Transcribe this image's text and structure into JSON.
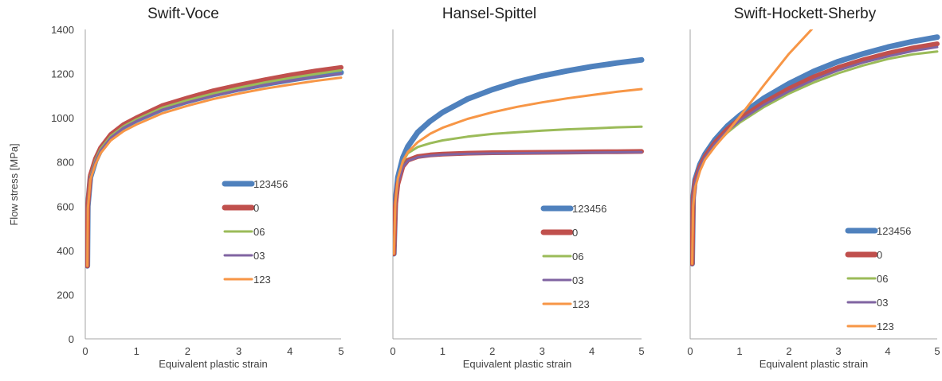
{
  "chart_data": {
    "type": "line",
    "ylabel": "Flow stress [MPa]",
    "xlabel": "Equivalent plastic strain",
    "shared_y": {
      "ylim": [
        0,
        1400
      ],
      "ticks": [
        0,
        200,
        400,
        600,
        800,
        1000,
        1200,
        1400
      ],
      "labels": [
        "0",
        "200",
        "400",
        "600",
        "800",
        "1000",
        "1200",
        "1400"
      ]
    },
    "colors": {
      "123456": "#4f81bd",
      "0": "#c0504d",
      "06": "#9bbb59",
      "03": "#8064a2",
      "123": "#f79646"
    },
    "panels": [
      {
        "title": "Swift-Voce",
        "xlim": [
          0,
          5
        ],
        "xticks": [
          "0",
          "1",
          "2",
          "3",
          "4",
          "5"
        ],
        "legend_position": "center-right",
        "series": [
          {
            "name": "123456",
            "x": [
              0.04,
              0.05,
              0.1,
              0.2,
              0.3,
              0.5,
              0.75,
              1,
              1.5,
              2,
              2.5,
              3,
              3.5,
              4,
              4.5,
              5
            ],
            "y": [
              330,
              600,
              730,
              805,
              855,
              915,
              960,
              990,
              1040,
              1075,
              1105,
              1130,
              1152,
              1172,
              1190,
              1205
            ]
          },
          {
            "name": "0",
            "x": [
              0.04,
              0.05,
              0.1,
              0.2,
              0.3,
              0.5,
              0.75,
              1,
              1.5,
              2,
              2.5,
              3,
              3.5,
              4,
              4.5,
              5
            ],
            "y": [
              330,
              610,
              740,
              815,
              865,
              925,
              970,
              1000,
              1055,
              1090,
              1122,
              1148,
              1172,
              1193,
              1212,
              1228
            ]
          },
          {
            "name": "06",
            "x": [
              0.04,
              0.05,
              0.1,
              0.2,
              0.3,
              0.5,
              0.75,
              1,
              1.5,
              2,
              2.5,
              3,
              3.5,
              4,
              4.5,
              5
            ],
            "y": [
              330,
              600,
              735,
              810,
              860,
              918,
              962,
              993,
              1045,
              1080,
              1110,
              1136,
              1160,
              1180,
              1198,
              1215
            ]
          },
          {
            "name": "03",
            "x": [
              0.04,
              0.05,
              0.1,
              0.2,
              0.3,
              0.5,
              0.75,
              1,
              1.5,
              2,
              2.5,
              3,
              3.5,
              4,
              4.5,
              5
            ],
            "y": [
              330,
              600,
              730,
              803,
              852,
              910,
              955,
              985,
              1036,
              1070,
              1100,
              1125,
              1148,
              1168,
              1185,
              1200
            ]
          },
          {
            "name": "123",
            "x": [
              0.04,
              0.05,
              0.1,
              0.2,
              0.3,
              0.5,
              0.75,
              1,
              1.5,
              2,
              2.5,
              3,
              3.5,
              4,
              4.5,
              5
            ],
            "y": [
              330,
              590,
              720,
              790,
              840,
              898,
              940,
              970,
              1020,
              1055,
              1085,
              1110,
              1132,
              1150,
              1167,
              1182
            ]
          }
        ]
      },
      {
        "title": "Hansel-Spittel",
        "xlim": [
          0,
          5
        ],
        "xticks": [
          "0",
          "1",
          "2",
          "3",
          "4",
          "5"
        ],
        "legend_position": "bottom-right",
        "series": [
          {
            "name": "123456",
            "x": [
              0.02,
              0.05,
              0.1,
              0.2,
              0.3,
              0.5,
              0.75,
              1,
              1.5,
              2,
              2.5,
              3,
              3.5,
              4,
              4.5,
              5
            ],
            "y": [
              385,
              620,
              730,
              820,
              870,
              935,
              985,
              1025,
              1085,
              1128,
              1163,
              1190,
              1212,
              1232,
              1248,
              1262
            ]
          },
          {
            "name": "0",
            "x": [
              0.02,
              0.05,
              0.1,
              0.2,
              0.3,
              0.5,
              0.75,
              1,
              1.5,
              2,
              2.5,
              3,
              3.5,
              4,
              4.5,
              5
            ],
            "y": [
              385,
              600,
              700,
              780,
              808,
              825,
              832,
              836,
              840,
              842,
              843,
              844,
              845,
              846,
              847,
              848
            ]
          },
          {
            "name": "06",
            "x": [
              0.02,
              0.05,
              0.1,
              0.2,
              0.3,
              0.5,
              0.75,
              1,
              1.5,
              2,
              2.5,
              3,
              3.5,
              4,
              4.5,
              5
            ],
            "y": [
              385,
              610,
              720,
              800,
              840,
              868,
              885,
              898,
              915,
              927,
              935,
              942,
              948,
              952,
              957,
              960
            ]
          },
          {
            "name": "03",
            "x": [
              0.02,
              0.05,
              0.1,
              0.2,
              0.3,
              0.5,
              0.75,
              1,
              1.5,
              2,
              2.5,
              3,
              3.5,
              4,
              4.5,
              5
            ],
            "y": [
              385,
              600,
              700,
              778,
              805,
              822,
              829,
              833,
              837,
              839,
              840,
              841,
              842,
              843,
              844,
              845
            ]
          },
          {
            "name": "123",
            "x": [
              0.02,
              0.05,
              0.1,
              0.2,
              0.3,
              0.5,
              0.75,
              1,
              1.5,
              2,
              2.5,
              3,
              3.5,
              4,
              4.5,
              5
            ],
            "y": [
              385,
              615,
              725,
              805,
              845,
              890,
              928,
              955,
              995,
              1025,
              1050,
              1070,
              1088,
              1103,
              1118,
              1130
            ]
          }
        ]
      },
      {
        "title": "Swift-Hockett-Sherby",
        "xlim": [
          0,
          5
        ],
        "xticks": [
          "0",
          "1",
          "2",
          "3",
          "4",
          "5"
        ],
        "legend_position": "bottom-right",
        "series": [
          {
            "name": "123456",
            "x": [
              0.04,
              0.06,
              0.1,
              0.2,
              0.3,
              0.5,
              0.75,
              1,
              1.5,
              2,
              2.5,
              3,
              3.5,
              4,
              4.5,
              5
            ],
            "y": [
              340,
              640,
              720,
              790,
              835,
              900,
              962,
              1010,
              1090,
              1155,
              1210,
              1255,
              1290,
              1320,
              1345,
              1365
            ]
          },
          {
            "name": "0",
            "x": [
              0.04,
              0.06,
              0.1,
              0.2,
              0.3,
              0.5,
              0.75,
              1,
              1.5,
              2,
              2.5,
              3,
              3.5,
              4,
              4.5,
              5
            ],
            "y": [
              340,
              635,
              712,
              780,
              825,
              888,
              948,
              995,
              1070,
              1132,
              1185,
              1228,
              1262,
              1292,
              1316,
              1335
            ]
          },
          {
            "name": "06",
            "x": [
              0.04,
              0.06,
              0.1,
              0.2,
              0.3,
              0.5,
              0.75,
              1,
              1.5,
              2,
              2.5,
              3,
              3.5,
              4,
              4.5,
              5
            ],
            "y": [
              340,
              630,
              705,
              772,
              815,
              875,
              933,
              978,
              1050,
              1110,
              1160,
              1202,
              1237,
              1266,
              1287,
              1300
            ]
          },
          {
            "name": "03",
            "x": [
              0.04,
              0.06,
              0.1,
              0.2,
              0.3,
              0.5,
              0.75,
              1,
              1.5,
              2,
              2.5,
              3,
              3.5,
              4,
              4.5,
              5
            ],
            "y": [
              340,
              633,
              708,
              776,
              820,
              882,
              940,
              986,
              1060,
              1120,
              1172,
              1215,
              1250,
              1278,
              1302,
              1320
            ]
          },
          {
            "name": "123",
            "x": [
              0.04,
              0.06,
              0.1,
              0.2,
              0.3,
              0.5,
              0.75,
              1,
              1.5,
              2,
              2.5
            ],
            "y": [
              340,
              600,
              685,
              760,
              810,
              870,
              935,
              1005,
              1150,
              1290,
              1410
            ]
          }
        ]
      }
    ]
  }
}
